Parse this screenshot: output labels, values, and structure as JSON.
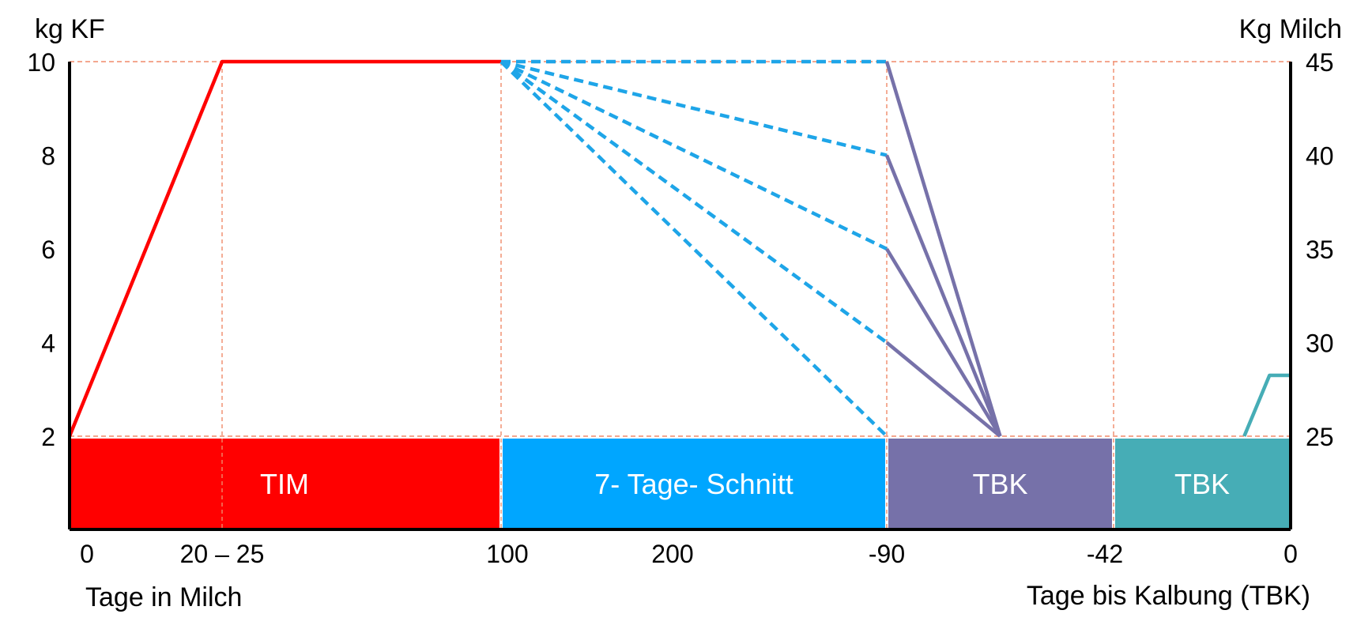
{
  "chart_data": {
    "type": "line",
    "y_left_label": "kg KF",
    "y_right_label": "Kg Milch",
    "x_label_left": "Tage in Milch",
    "x_label_right": "Tage bis Kalbung (TBK)",
    "y_left_ticks": [
      "10",
      "8",
      "6",
      "4",
      "2"
    ],
    "y_right_ticks": [
      "45",
      "40",
      "35",
      "30",
      "25"
    ],
    "y_left_range": [
      2,
      10
    ],
    "y_right_range": [
      25,
      45
    ],
    "x_ticks": [
      "0",
      "20 – 25",
      "100",
      "200",
      "-90",
      "-42",
      "0"
    ],
    "phases": [
      {
        "label": "TIM",
        "color": "#ff0000"
      },
      {
        "label": "7- Tage- Schnitt",
        "color": "#00a6ff"
      },
      {
        "label": "TBK",
        "color": "#7671a9"
      },
      {
        "label": "TBK",
        "color": "#46adb6"
      }
    ],
    "series": [
      {
        "points": [
          [
            0,
            2
          ],
          [
            22,
            10
          ],
          [
            100,
            10
          ]
        ],
        "color": "#ff0000",
        "style": "solid"
      },
      {
        "points": [
          [
            100,
            10
          ],
          [
            -90,
            10
          ]
        ],
        "color": "#1ea5e8",
        "style": "dashed"
      },
      {
        "points": [
          [
            100,
            10
          ],
          [
            -90,
            8
          ]
        ],
        "color": "#1ea5e8",
        "style": "dashed"
      },
      {
        "points": [
          [
            100,
            10
          ],
          [
            -90,
            6
          ]
        ],
        "color": "#1ea5e8",
        "style": "dashed"
      },
      {
        "points": [
          [
            100,
            10
          ],
          [
            -90,
            4
          ]
        ],
        "color": "#1ea5e8",
        "style": "dashed"
      },
      {
        "points": [
          [
            100,
            10
          ],
          [
            -90,
            2
          ]
        ],
        "color": "#1ea5e8",
        "style": "dashed"
      },
      {
        "points": [
          [
            -90,
            10
          ],
          [
            -66,
            2
          ]
        ],
        "color": "#7671a9",
        "style": "solid"
      },
      {
        "points": [
          [
            -90,
            8
          ],
          [
            -66,
            2
          ]
        ],
        "color": "#7671a9",
        "style": "solid"
      },
      {
        "points": [
          [
            -90,
            6
          ],
          [
            -66,
            2
          ]
        ],
        "color": "#7671a9",
        "style": "solid"
      },
      {
        "points": [
          [
            -90,
            4
          ],
          [
            -66,
            2
          ]
        ],
        "color": "#7671a9",
        "style": "solid"
      },
      {
        "points": [
          [
            -11,
            2
          ],
          [
            -5,
            3.3
          ],
          [
            0,
            3.3
          ]
        ],
        "color": "#46adb6",
        "style": "solid"
      }
    ]
  }
}
